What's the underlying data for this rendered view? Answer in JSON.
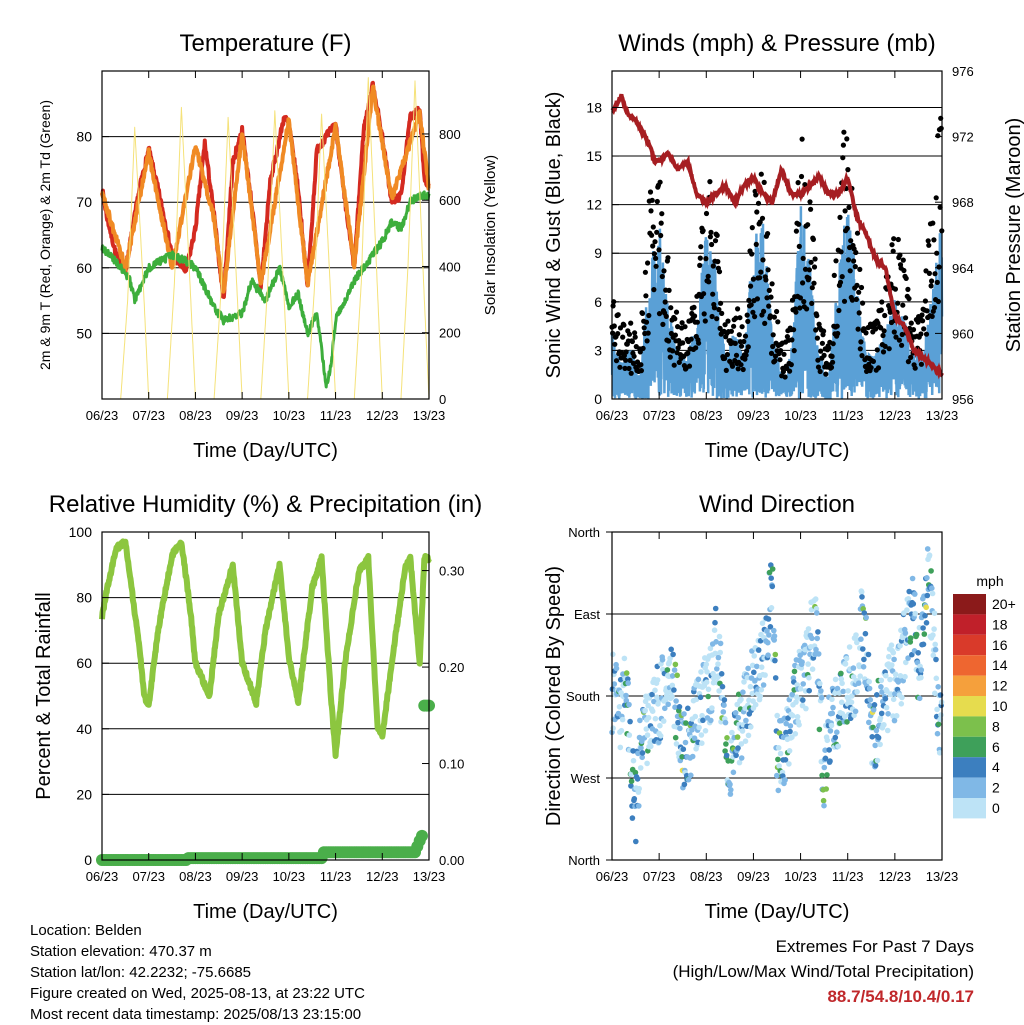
{
  "x_ticks": [
    "06/23",
    "07/23",
    "08/23",
    "09/23",
    "10/23",
    "11/23",
    "12/23",
    "13/23"
  ],
  "colors": {
    "t2m": "#d42a20",
    "t9m": "#f08a24",
    "td2m": "#3dae3c",
    "solar": "#f5e27a",
    "wind": "#5aa0d6",
    "gust": "#000000",
    "pressure": "#a61e22",
    "rh": "#8cc63f",
    "precip": "#4aae4a",
    "extremes": "#c0282b"
  },
  "chart_data": [
    {
      "type": "line",
      "title": "Temperature (F)",
      "xlabel": "Time (Day/UTC)",
      "ylabel": "2m & 9m T (Red, Orange) & 2m Td (Green)",
      "y2label": "Solar Insolation (Yellow)",
      "x_unit": "days since 06/23 00 UTC",
      "x_range": [
        0,
        7
      ],
      "ylim": [
        40,
        90
      ],
      "yticks": [
        50,
        60,
        70,
        80
      ],
      "y2lim": [
        0,
        990
      ],
      "y2ticks": [
        0,
        200,
        400,
        600,
        800
      ],
      "grid": true,
      "series": [
        {
          "name": "2m T",
          "axis": "left",
          "color": "#d42a20",
          "x": [
            0.0,
            0.1,
            0.3,
            0.5,
            0.8,
            1.0,
            1.2,
            1.5,
            1.8,
            2.0,
            2.2,
            2.4,
            2.6,
            2.8,
            3.0,
            3.2,
            3.4,
            3.6,
            3.9,
            4.0,
            4.2,
            4.4,
            4.6,
            5.0,
            5.2,
            5.4,
            5.6,
            5.8,
            6.0,
            6.2,
            6.4,
            6.6,
            6.8,
            6.9,
            7.0
          ],
          "y": [
            72,
            68,
            62,
            59.5,
            72,
            78,
            72,
            62,
            59.5,
            66,
            79,
            68,
            55,
            76,
            81,
            70,
            57,
            73,
            83,
            82,
            72,
            57,
            78,
            82,
            70,
            60,
            81,
            88,
            80,
            70,
            71,
            83,
            84,
            74,
            72
          ]
        },
        {
          "name": "9m T",
          "axis": "left",
          "color": "#f08a24",
          "x": [
            0.0,
            0.5,
            1.0,
            1.5,
            2.0,
            2.4,
            2.6,
            3.0,
            3.4,
            4.0,
            4.4,
            5.0,
            5.4,
            5.8,
            6.2,
            6.8,
            7.0
          ],
          "y": [
            71.5,
            60,
            77.5,
            60,
            78.5,
            67.5,
            56,
            80.5,
            57.5,
            82.5,
            57.5,
            81.5,
            60.5,
            87.5,
            70.5,
            83.5,
            72
          ]
        },
        {
          "name": "2m Td",
          "axis": "left",
          "color": "#3dae3c",
          "x": [
            0.0,
            0.3,
            0.6,
            0.7,
            1.0,
            1.5,
            1.8,
            2.0,
            2.2,
            2.4,
            2.6,
            3.0,
            3.2,
            3.5,
            3.8,
            4.0,
            4.2,
            4.4,
            4.6,
            4.8,
            4.9,
            5.0,
            5.2,
            5.4,
            5.6,
            5.8,
            6.0,
            6.2,
            6.4,
            6.6,
            6.8,
            7.0
          ],
          "y": [
            63,
            61,
            58,
            55,
            60,
            62,
            61,
            60,
            57,
            54,
            52,
            53,
            58,
            55,
            60,
            54,
            56,
            50,
            53,
            42,
            45,
            52,
            55,
            58,
            60,
            62,
            64,
            67,
            66,
            70,
            71,
            71
          ]
        },
        {
          "name": "Solar Insolation",
          "axis": "right",
          "color": "#f5e27a",
          "x": [
            0.0,
            0.2,
            0.4,
            0.55,
            0.7,
            0.9,
            1.0,
            1.2,
            1.4,
            1.55,
            1.7,
            1.9,
            2.0,
            2.2,
            2.4,
            2.55,
            2.7,
            2.9,
            3.0,
            3.2,
            3.4,
            3.55,
            3.7,
            3.9,
            4.0,
            4.2,
            4.4,
            4.55,
            4.7,
            4.9,
            5.0,
            5.2,
            5.4,
            5.55,
            5.7,
            5.9,
            6.0,
            6.2,
            6.4,
            6.55,
            6.7,
            6.9,
            7.0
          ],
          "y": [
            0,
            0,
            0,
            300,
            820,
            300,
            0,
            0,
            0,
            350,
            880,
            300,
            0,
            0,
            0,
            330,
            850,
            300,
            0,
            0,
            0,
            350,
            870,
            300,
            0,
            0,
            0,
            340,
            860,
            300,
            0,
            0,
            0,
            350,
            970,
            320,
            0,
            0,
            0,
            400,
            960,
            300,
            0
          ]
        }
      ]
    },
    {
      "type": "scatter",
      "title": "Winds (mph) & Pressure (mb)",
      "xlabel": "Time (Day/UTC)",
      "ylabel": "Sonic Wind & Gust (Blue, Black)",
      "y2label": "Station Pressure (Maroon)",
      "x_unit": "days since 06/23 00 UTC",
      "x_range": [
        0,
        7
      ],
      "ylim": [
        0,
        20.25
      ],
      "yticks": [
        0,
        3,
        6,
        9,
        12,
        15,
        18
      ],
      "y2lim": [
        956,
        976
      ],
      "y2ticks": [
        956,
        960,
        964,
        968,
        972,
        976
      ],
      "grid": true,
      "series": [
        {
          "name": "Sonic Wind",
          "axis": "left",
          "color": "#5aa0d6",
          "x": [
            0.0,
            0.2,
            0.4,
            0.6,
            0.8,
            1.0,
            1.2,
            1.4,
            1.6,
            1.8,
            2.0,
            2.2,
            2.4,
            2.6,
            2.8,
            3.0,
            3.2,
            3.4,
            3.6,
            3.8,
            4.0,
            4.2,
            4.4,
            4.6,
            4.8,
            5.0,
            5.2,
            5.4,
            5.6,
            5.8,
            6.0,
            6.2,
            6.4,
            6.6,
            6.8,
            7.0
          ],
          "y": [
            3,
            1.5,
            2.5,
            1,
            6,
            8,
            4,
            2,
            2,
            3.5,
            7.5,
            6,
            2,
            3,
            2,
            7,
            8,
            3,
            1,
            2,
            9,
            6,
            2,
            1,
            5.5,
            9,
            5,
            2,
            2,
            3,
            4.5,
            3.5,
            2,
            2,
            5,
            8
          ]
        },
        {
          "name": "Gust",
          "axis": "left",
          "color": "#000000",
          "x": [
            0.0,
            0.2,
            0.4,
            0.6,
            0.8,
            1.0,
            1.2,
            1.4,
            1.6,
            1.8,
            2.0,
            2.2,
            2.4,
            2.6,
            2.8,
            3.0,
            3.2,
            3.4,
            3.6,
            3.8,
            4.0,
            4.2,
            4.4,
            4.6,
            4.8,
            5.0,
            5.2,
            5.4,
            5.6,
            5.8,
            6.0,
            6.2,
            6.4,
            6.6,
            6.8,
            7.0
          ],
          "y": [
            6,
            4,
            4,
            3,
            11,
            12,
            7,
            4,
            4,
            6,
            12,
            10,
            4,
            5,
            4,
            11,
            12,
            6,
            3,
            4,
            14,
            11,
            4,
            3,
            9,
            17,
            9,
            4,
            4,
            6,
            9,
            7,
            4,
            5,
            11,
            16
          ]
        },
        {
          "name": "Station Pressure",
          "axis": "right",
          "color": "#a61e22",
          "x": [
            0.0,
            0.1,
            0.2,
            0.3,
            0.5,
            0.8,
            0.9,
            1.0,
            1.2,
            1.4,
            1.6,
            1.8,
            2.0,
            2.2,
            2.4,
            2.6,
            2.8,
            3.0,
            3.2,
            3.4,
            3.6,
            3.8,
            4.0,
            4.2,
            4.4,
            4.6,
            4.8,
            5.0,
            5.2,
            5.4,
            5.6,
            5.8,
            6.0,
            6.2,
            6.4,
            6.6,
            6.8,
            7.0
          ],
          "y": [
            973.5,
            974,
            974.5,
            973.5,
            973,
            971.5,
            970.5,
            970.5,
            971,
            970,
            970.5,
            968.5,
            968,
            968.5,
            969,
            968,
            969,
            969.5,
            968.5,
            968,
            970,
            968.5,
            968.5,
            969,
            969.5,
            968.5,
            968.5,
            969.5,
            967,
            966,
            964.5,
            964,
            961,
            960.5,
            959,
            958.5,
            958,
            957.5
          ]
        }
      ]
    },
    {
      "type": "line",
      "title": "Relative Humidity (%) & Precipitation (in)",
      "xlabel": "Time (Day/UTC)",
      "ylabel": "Percent & Total Rainfall",
      "x_unit": "days since 06/23 00 UTC",
      "x_range": [
        0,
        7
      ],
      "ylim": [
        0,
        100
      ],
      "yticks": [
        0,
        20,
        40,
        60,
        80,
        100
      ],
      "y2lim": [
        0,
        0.34
      ],
      "y2ticks": [
        0.0,
        0.1,
        0.2,
        0.3
      ],
      "y2tick_labels": [
        "0.00",
        "0.10",
        "0.20",
        "0.30"
      ],
      "grid": true,
      "series": [
        {
          "name": "Relative Humidity",
          "axis": "left",
          "color": "#8cc63f",
          "x": [
            0.0,
            0.1,
            0.3,
            0.5,
            0.8,
            0.9,
            1.0,
            1.2,
            1.5,
            1.7,
            1.9,
            2.0,
            2.3,
            2.5,
            2.8,
            3.0,
            3.3,
            3.5,
            3.8,
            4.0,
            4.2,
            4.5,
            4.7,
            4.9,
            5.0,
            5.2,
            5.5,
            5.7,
            5.9,
            6.0,
            6.3,
            6.5,
            6.6,
            6.8,
            6.9,
            7.0
          ],
          "y": [
            74,
            82,
            95,
            97,
            65,
            50,
            47,
            70,
            93,
            97,
            75,
            60,
            50,
            75,
            90,
            60,
            48,
            70,
            90,
            62,
            48,
            83,
            92,
            50,
            32,
            60,
            88,
            92,
            40,
            38,
            70,
            90,
            92,
            60,
            92,
            92
          ]
        },
        {
          "name": "Total Precipitation",
          "axis": "right",
          "color": "#4aae4a",
          "x": [
            0.0,
            1.8,
            1.81,
            4.7,
            4.71,
            6.7,
            6.8,
            6.85,
            6.9,
            7.0
          ],
          "y": [
            0.0,
            0.0,
            0.002,
            0.002,
            0.008,
            0.008,
            0.02,
            0.025,
            0.16,
            0.16
          ]
        }
      ]
    },
    {
      "type": "scatter",
      "title": "Wind Direction",
      "xlabel": "Time (Day/UTC)",
      "ylabel": "Direction (Colored By Speed)",
      "x_unit": "days since 06/23 00 UTC",
      "x_range": [
        0,
        7
      ],
      "yticks": [
        "North",
        "East",
        "South",
        "West",
        "North"
      ],
      "ylim_degrees": [
        0,
        360
      ],
      "grid": true,
      "legend": {
        "title": "mph",
        "placement": "right",
        "labels": [
          "20+",
          "18",
          "16",
          "14",
          "12",
          "10",
          "8",
          "6",
          "4",
          "2",
          "0"
        ],
        "colors": [
          "#8b1a1a",
          "#c0202a",
          "#d93a2a",
          "#ee6630",
          "#f5a03c",
          "#e6dc4e",
          "#7cc04c",
          "#3ea05a",
          "#3c7fbf",
          "#80b8e6",
          "#bde3f6"
        ]
      },
      "series": [
        {
          "name": "Direction",
          "color": "#80b8e6",
          "x": [
            0.0,
            0.1,
            0.2,
            0.3,
            0.4,
            0.5,
            0.6,
            0.7,
            0.8,
            0.9,
            1.0,
            1.1,
            1.2,
            1.3,
            1.4,
            1.5,
            1.6,
            1.7,
            1.8,
            1.9,
            2.0,
            2.1,
            2.2,
            2.3,
            2.4,
            2.5,
            2.6,
            2.7,
            2.8,
            2.9,
            3.0,
            3.1,
            3.2,
            3.3,
            3.4,
            3.5,
            3.6,
            3.7,
            3.8,
            3.9,
            4.0,
            4.1,
            4.2,
            4.3,
            4.4,
            4.5,
            4.6,
            4.7,
            4.8,
            4.9,
            5.0,
            5.1,
            5.2,
            5.3,
            5.4,
            5.5,
            5.6,
            5.7,
            5.8,
            5.9,
            6.0,
            6.1,
            6.2,
            6.3,
            6.4,
            6.5,
            6.6,
            6.7,
            6.8,
            6.9,
            7.0
          ],
          "y": [
            185,
            170,
            150,
            200,
            90,
            60,
            120,
            140,
            150,
            160,
            175,
            180,
            190,
            200,
            150,
            110,
            130,
            140,
            160,
            170,
            185,
            190,
            250,
            200,
            120,
            70,
            130,
            150,
            160,
            180,
            190,
            210,
            230,
            260,
            290,
            120,
            110,
            140,
            160,
            180,
            190,
            200,
            230,
            270,
            180,
            90,
            140,
            160,
            165,
            175,
            190,
            200,
            210,
            260,
            220,
            130,
            150,
            160,
            170,
            200,
            195,
            205,
            230,
            250,
            270,
            200,
            280,
            300,
            280,
            150,
            130
          ]
        }
      ]
    }
  ],
  "footer": {
    "location": "Location: Belden",
    "elevation": "Station elevation: 470.37 m",
    "latlon": "Station lat/lon: 42.2232; -75.6685",
    "created": "Figure created on Wed, 2025-08-13, at 23:22 UTC",
    "recent": "Most recent data timestamp: 2025/08/13 23:15:00",
    "extremes_title": "Extremes For Past 7 Days",
    "extremes_subtitle": "(High/Low/Max Wind/Total Precipitation)",
    "extremes_value": "88.7/54.8/10.4/0.17"
  }
}
